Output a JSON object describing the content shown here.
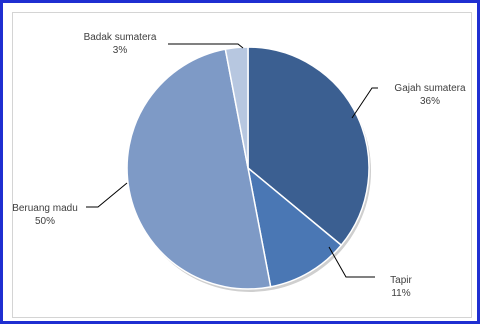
{
  "chart_data": {
    "type": "pie",
    "start_angle_deg": 0,
    "direction": "clockwise",
    "slices": [
      {
        "name": "Gajah sumatera",
        "value": 36,
        "label": "36%",
        "color": "#3b5f91"
      },
      {
        "name": "Tapir",
        "value": 11,
        "label": "11%",
        "color": "#4a77b4"
      },
      {
        "name": "Beruang madu",
        "value": 50,
        "label": "50%",
        "color": "#7e9ac6"
      },
      {
        "name": "Badak sumatera",
        "value": 3,
        "label": "3%",
        "color": "#b7c7e0"
      }
    ],
    "border_color": "#1f2fd1",
    "label_color": "#404040"
  }
}
